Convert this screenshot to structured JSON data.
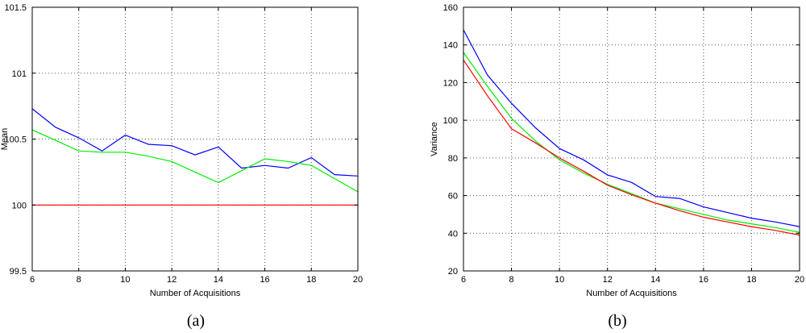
{
  "chart_data": [
    {
      "type": "line",
      "caption": "(a)",
      "xlabel": "Number of Acquisitions",
      "ylabel": "Mean",
      "xlim": [
        6,
        20
      ],
      "ylim": [
        99.5,
        101.5
      ],
      "xticks": [
        "6",
        "8",
        "10",
        "12",
        "14",
        "16",
        "18",
        "20"
      ],
      "yticks": [
        "99.5",
        "100",
        "100.5",
        "101",
        "101.5"
      ],
      "grid": true,
      "x": [
        6,
        7,
        8,
        9,
        10,
        11,
        12,
        13,
        14,
        15,
        16,
        17,
        18,
        19,
        20
      ],
      "series": [
        {
          "color": "#0000ff",
          "values": [
            100.73,
            100.59,
            100.51,
            100.41,
            100.53,
            100.46,
            100.45,
            100.38,
            100.44,
            100.28,
            100.3,
            100.28,
            100.36,
            100.23,
            100.22
          ]
        },
        {
          "color": "#00ee00",
          "values": [
            100.57,
            100.49,
            100.41,
            100.4,
            100.4,
            100.37,
            100.33,
            100.25,
            100.17,
            100.26,
            100.35,
            100.33,
            100.3,
            100.2,
            100.1
          ]
        },
        {
          "color": "#ff0000",
          "values": [
            100,
            100,
            100,
            100,
            100,
            100,
            100,
            100,
            100,
            100,
            100,
            100,
            100,
            100,
            100
          ]
        }
      ]
    },
    {
      "type": "line",
      "caption": "(b)",
      "xlabel": "Number of Acquisitions",
      "ylabel": "Variance",
      "xlim": [
        6,
        20
      ],
      "ylim": [
        20,
        160
      ],
      "xticks": [
        "6",
        "8",
        "10",
        "12",
        "14",
        "16",
        "18",
        "20"
      ],
      "yticks": [
        "20",
        "40",
        "60",
        "80",
        "100",
        "120",
        "140",
        "160"
      ],
      "grid": true,
      "x": [
        6,
        7,
        8,
        9,
        10,
        11,
        12,
        13,
        14,
        15,
        16,
        17,
        18,
        19,
        20
      ],
      "series": [
        {
          "color": "#0000ff",
          "values": [
            148,
            124,
            109,
            96,
            85,
            79,
            71,
            67,
            59.5,
            58.5,
            54,
            51,
            48,
            46,
            43.5
          ]
        },
        {
          "color": "#00ee00",
          "values": [
            136,
            118,
            101,
            89,
            79,
            72,
            66,
            61,
            56,
            53,
            50,
            47,
            45,
            43,
            40.5
          ]
        },
        {
          "color": "#ff0000",
          "values": [
            132,
            113,
            95.5,
            88,
            80,
            73,
            65.5,
            60.5,
            56,
            52,
            48.5,
            46,
            43.5,
            41.5,
            39
          ]
        }
      ]
    }
  ]
}
